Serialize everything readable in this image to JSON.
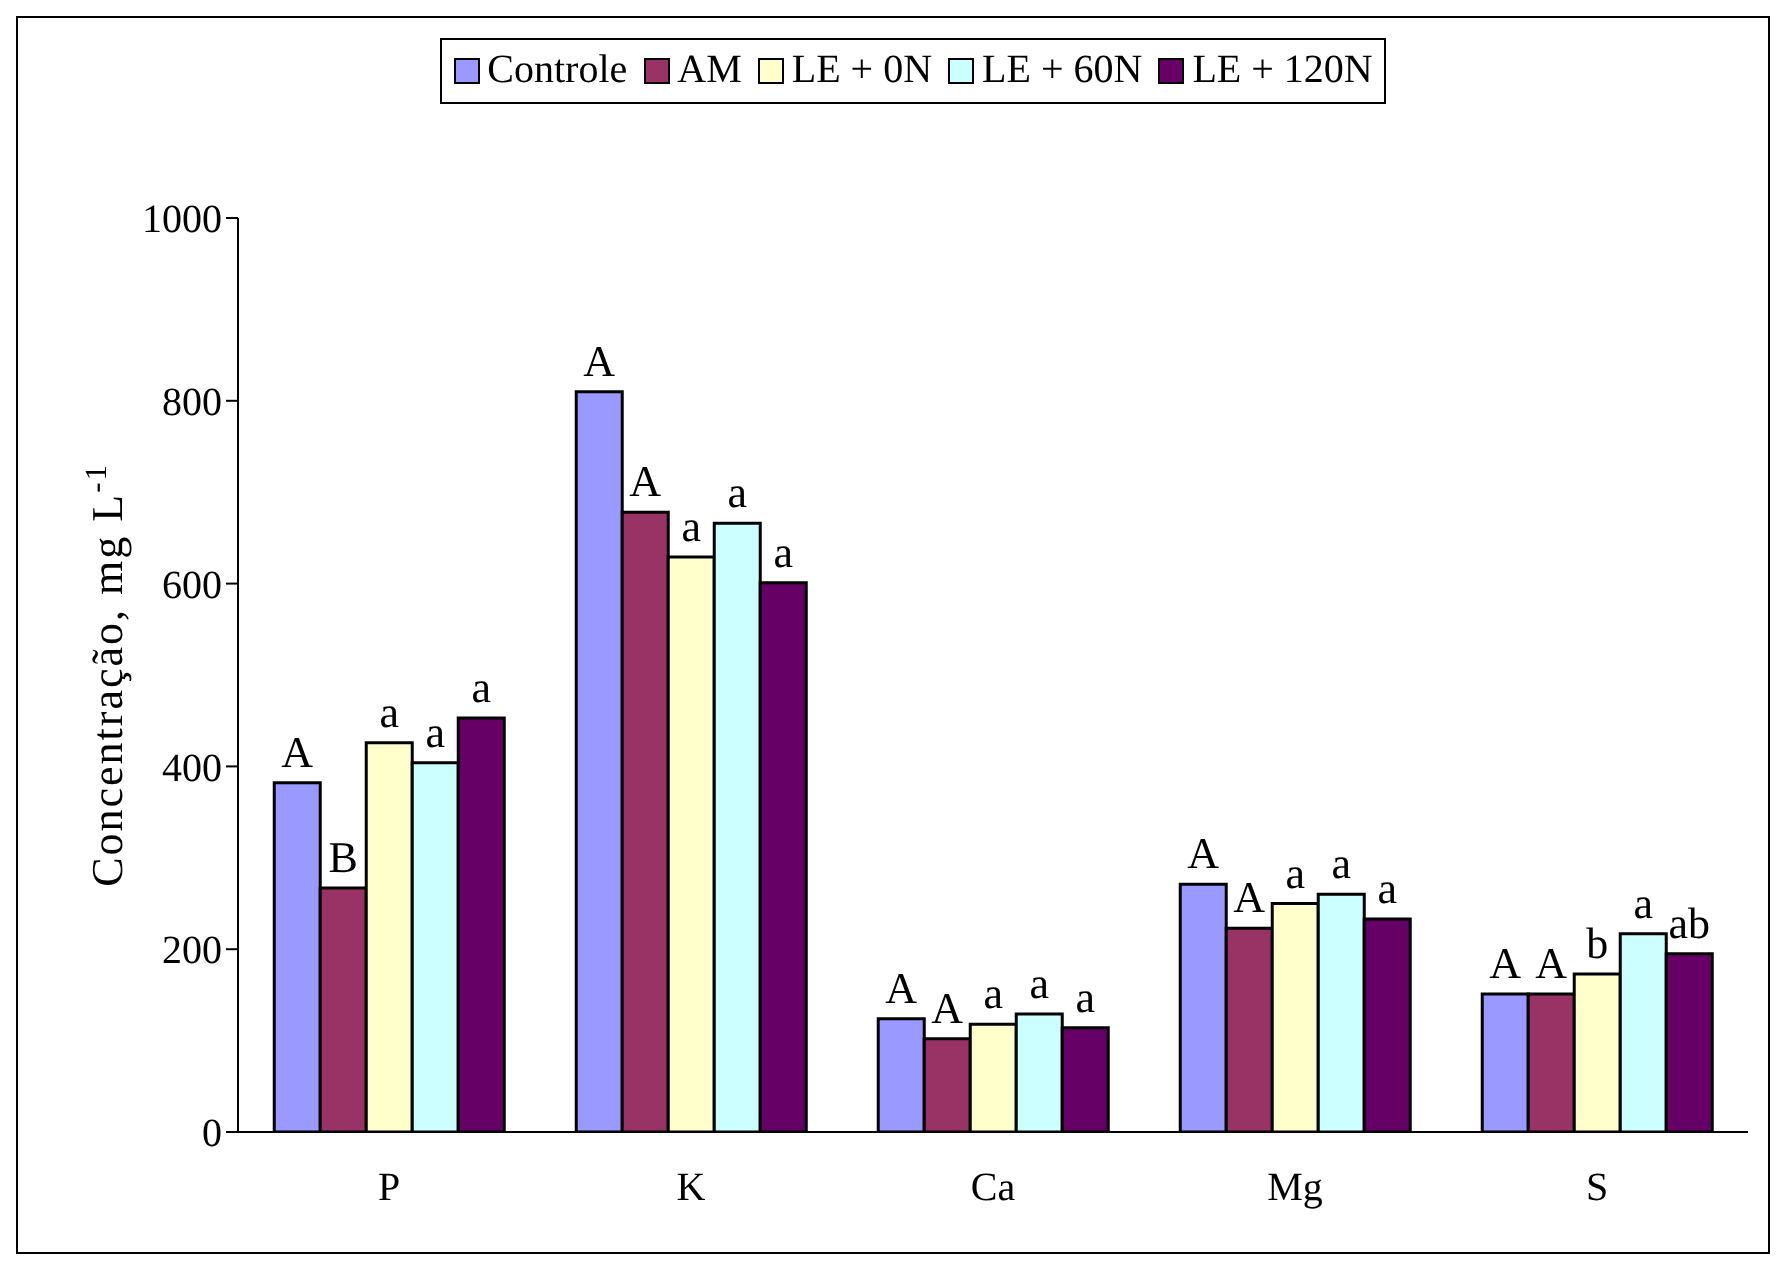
{
  "chart_data": {
    "type": "bar",
    "ylabel": "Concentração, mg L$^{-1}$",
    "categories": [
      "P",
      "K",
      "Ca",
      "Mg",
      "S"
    ],
    "series": [
      {
        "name": "Controle",
        "color": "#9999ff",
        "values": [
          382,
          810,
          124,
          271,
          151
        ],
        "value_labels": [
          "A",
          "A",
          "A",
          "A",
          "A"
        ]
      },
      {
        "name": "AM",
        "color": "#993366",
        "values": [
          267,
          678,
          102,
          223,
          151
        ],
        "value_labels": [
          "B",
          "A",
          "A",
          "A",
          "A"
        ]
      },
      {
        "name": "LE + 0N",
        "color": "#ffffcc",
        "values": [
          426,
          629,
          118,
          250,
          173
        ],
        "value_labels": [
          "a",
          "a",
          "a",
          "a",
          "b"
        ]
      },
      {
        "name": "LE + 60N",
        "color": "#ccffff",
        "values": [
          404,
          666,
          129,
          260,
          217
        ],
        "value_labels": [
          "a",
          "a",
          "a",
          "a",
          "a"
        ]
      },
      {
        "name": "LE + 120N",
        "color": "#660066",
        "values": [
          453,
          601,
          114,
          233,
          195
        ],
        "value_labels": [
          "a",
          "a",
          "a",
          "a",
          "ab"
        ]
      }
    ],
    "ylim": [
      0,
      1000
    ],
    "yticks": [
      0,
      200,
      400,
      600,
      800,
      1000
    ],
    "legend": "top"
  }
}
